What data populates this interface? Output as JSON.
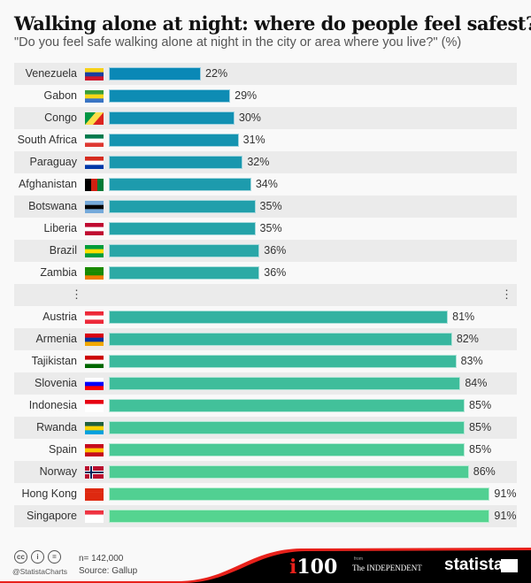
{
  "header": {
    "title": "Walking alone at night: where do people feel safest?",
    "subtitle": "\"Do you feel safe walking alone at night in the city or area where you live?\" (%)"
  },
  "chart_data": {
    "type": "bar",
    "orientation": "horizontal",
    "title": "Walking alone at night: where do people feel safest?",
    "subtitle": "\"Do you feel safe walking alone at night in the city or area where you live?\" (%)",
    "categories": [
      "Venezuela",
      "Gabon",
      "Congo",
      "South Africa",
      "Paraguay",
      "Afghanistan",
      "Botswana",
      "Liberia",
      "Brazil",
      "Zambia",
      "…",
      "Austria",
      "Armenia",
      "Tajikistan",
      "Slovenia",
      "Indonesia",
      "Rwanda",
      "Spain",
      "Norway",
      "Hong Kong",
      "Singapore"
    ],
    "values": [
      22,
      29,
      30,
      31,
      32,
      34,
      35,
      35,
      36,
      36,
      null,
      81,
      82,
      83,
      84,
      85,
      85,
      85,
      86,
      91,
      91
    ],
    "value_labels": [
      "22%",
      "29%",
      "30%",
      "31%",
      "32%",
      "34%",
      "35%",
      "35%",
      "36%",
      "36%",
      "",
      "81%",
      "82%",
      "83%",
      "84%",
      "85%",
      "85%",
      "85%",
      "86%",
      "91%",
      "91%"
    ],
    "ellipsis": "⋮",
    "xlim": [
      0,
      100
    ],
    "colors": {
      "start": "#0a88b6",
      "end": "#55d490"
    }
  },
  "footer": {
    "n": "n= 142,000",
    "source": "Source: Gallup",
    "handle": "@StatistaCharts",
    "cc": [
      "cc",
      "i",
      "="
    ],
    "i100": "i100",
    "from": "from",
    "independent": "The INDEPENDENT",
    "statista": "statista"
  }
}
